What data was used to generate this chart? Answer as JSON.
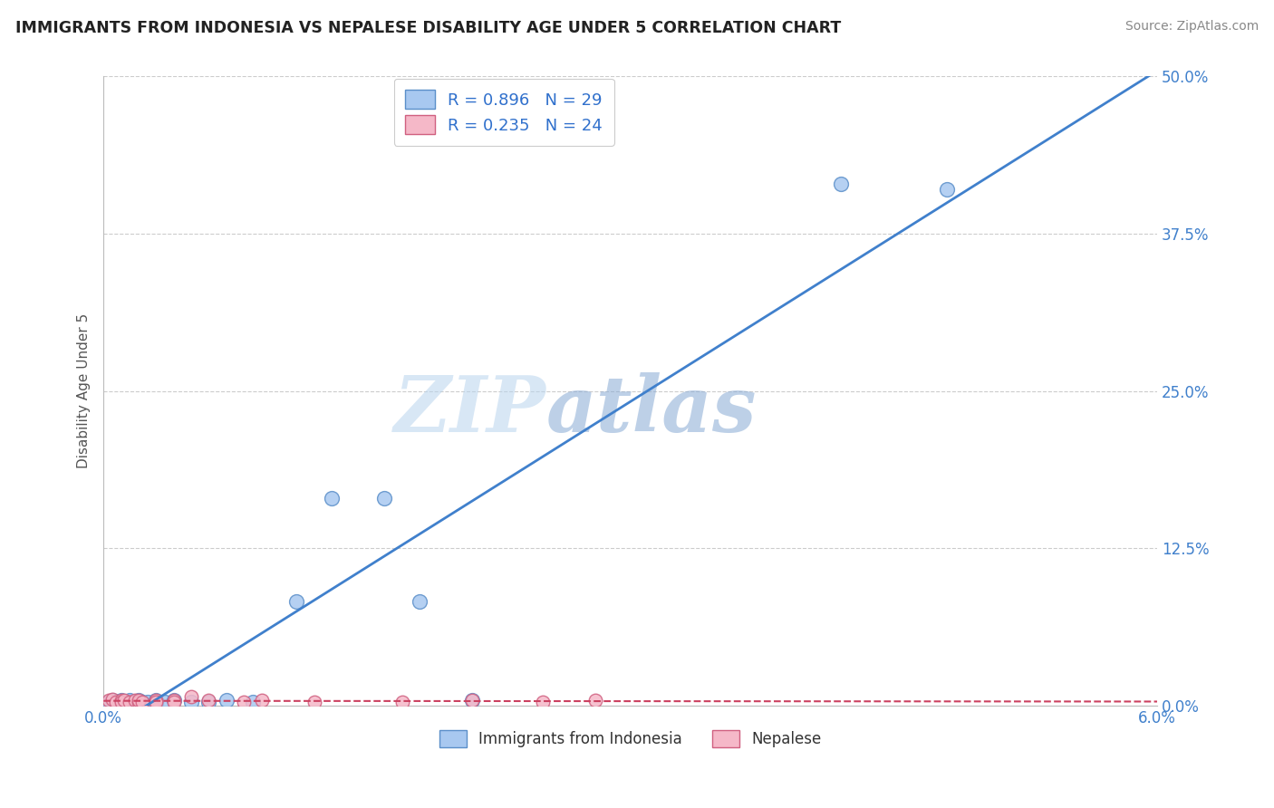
{
  "title": "IMMIGRANTS FROM INDONESIA VS NEPALESE DISABILITY AGE UNDER 5 CORRELATION CHART",
  "source": "Source: ZipAtlas.com",
  "ylabel_label": "Disability Age Under 5",
  "x_min": 0.0,
  "x_max": 0.06,
  "y_min": 0.0,
  "y_max": 0.5,
  "x_ticks": [
    0.0,
    0.01,
    0.02,
    0.03,
    0.04,
    0.05,
    0.06
  ],
  "x_tick_labels": [
    "0.0%",
    "",
    "",
    "",
    "",
    "",
    "6.0%"
  ],
  "y_tick_labels": [
    "0.0%",
    "12.5%",
    "25.0%",
    "37.5%",
    "50.0%"
  ],
  "y_ticks": [
    0.0,
    0.125,
    0.25,
    0.375,
    0.5
  ],
  "legend_labels": [
    "Immigrants from Indonesia",
    "Nepalese"
  ],
  "series1_color": "#a8c8f0",
  "series2_color": "#f5b8c8",
  "series1_edge": "#5b8fc9",
  "series2_edge": "#d06080",
  "line1_color": "#4080cc",
  "line2_color": "#cc4060",
  "R1": 0.896,
  "N1": 29,
  "R2": 0.235,
  "N2": 24,
  "watermark_zip": "ZIP",
  "watermark_atlas": "atlas",
  "series1_x": [
    0.0003,
    0.0005,
    0.0007,
    0.001,
    0.001,
    0.0012,
    0.0014,
    0.0015,
    0.0018,
    0.002,
    0.002,
    0.0022,
    0.0025,
    0.003,
    0.003,
    0.003,
    0.0035,
    0.004,
    0.005,
    0.006,
    0.007,
    0.0085,
    0.011,
    0.013,
    0.016,
    0.018,
    0.021,
    0.042,
    0.048
  ],
  "series1_y": [
    0.003,
    0.004,
    0.003,
    0.004,
    0.002,
    0.003,
    0.003,
    0.004,
    0.003,
    0.004,
    0.002,
    0.003,
    0.003,
    0.004,
    0.003,
    0.002,
    0.003,
    0.004,
    0.003,
    0.003,
    0.004,
    0.003,
    0.083,
    0.165,
    0.165,
    0.083,
    0.004,
    0.415,
    0.41
  ],
  "series2_x": [
    0.0003,
    0.0005,
    0.0007,
    0.001,
    0.001,
    0.0012,
    0.0015,
    0.0018,
    0.002,
    0.002,
    0.0022,
    0.003,
    0.003,
    0.004,
    0.004,
    0.005,
    0.006,
    0.008,
    0.009,
    0.012,
    0.017,
    0.021,
    0.025,
    0.028
  ],
  "series2_y": [
    0.004,
    0.005,
    0.003,
    0.004,
    0.003,
    0.004,
    0.003,
    0.004,
    0.003,
    0.004,
    0.003,
    0.004,
    0.003,
    0.004,
    0.003,
    0.007,
    0.004,
    0.003,
    0.004,
    0.003,
    0.003,
    0.004,
    0.003,
    0.004
  ]
}
